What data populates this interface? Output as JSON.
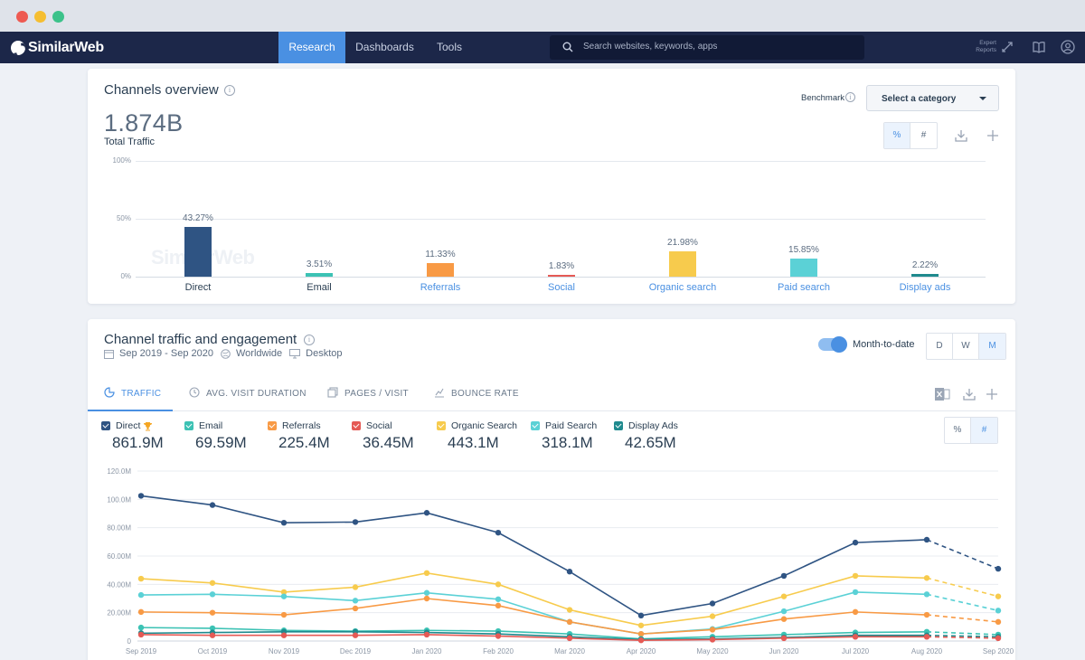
{
  "nav": {
    "brand": "SimilarWeb",
    "tabs": [
      "Research",
      "Dashboards",
      "Tools"
    ],
    "active_tab": "Research",
    "search_placeholder": "Search websites, keywords, apps",
    "expert_reports": "Expert Reports"
  },
  "channels_overview": {
    "title": "Channels overview",
    "total_value": "1.874B",
    "total_label": "Total Traffic",
    "benchmark_label": "Benchmark",
    "category_select": "Select a category",
    "toggle": [
      "%",
      "#"
    ],
    "active_toggle": "%",
    "watermark": "SimilarWeb"
  },
  "traffic_engagement": {
    "title": "Channel traffic and engagement",
    "date_range": "Sep 2019 - Sep 2020",
    "region": "Worldwide",
    "device": "Desktop",
    "month_to_date_label": "Month-to-date",
    "month_to_date_on": true,
    "granularity": [
      "D",
      "W",
      "M"
    ],
    "active_granularity": "M",
    "tabs": [
      "TRAFFIC",
      "AVG. VISIT DURATION",
      "PAGES / VISIT",
      "BOUNCE RATE"
    ],
    "active_tab": "TRAFFIC",
    "toggle": [
      "%",
      "#"
    ],
    "active_toggle": "#",
    "legend": [
      {
        "name": "Direct",
        "value": "861.9M",
        "color": "#2f5483",
        "trophy": true
      },
      {
        "name": "Email",
        "value": "69.59M",
        "color": "#3cc2b4"
      },
      {
        "name": "Referrals",
        "value": "225.4M",
        "color": "#f89a45"
      },
      {
        "name": "Social",
        "value": "36.45M",
        "color": "#e55a55"
      },
      {
        "name": "Organic Search",
        "value": "443.1M",
        "color": "#f7cb4d"
      },
      {
        "name": "Paid Search",
        "value": "318.1M",
        "color": "#5bd1d6"
      },
      {
        "name": "Display Ads",
        "value": "42.65M",
        "color": "#1f8a8e"
      }
    ]
  },
  "chart_data": [
    {
      "type": "bar",
      "title": "Channels overview",
      "categories": [
        "Direct",
        "Email",
        "Referrals",
        "Social",
        "Organic search",
        "Paid search",
        "Display ads"
      ],
      "values": [
        43.27,
        3.51,
        11.33,
        1.83,
        21.98,
        15.85,
        2.22
      ],
      "value_labels": [
        "43.27%",
        "3.51%",
        "11.33%",
        "1.83%",
        "21.98%",
        "15.85%",
        "2.22%"
      ],
      "colors": [
        "#2f5483",
        "#3cc2b4",
        "#f89a45",
        "#e55a55",
        "#f7cb4d",
        "#5bd1d6",
        "#1f8a8e"
      ],
      "category_link_color": "#4a90e2",
      "y_ticks": [
        "100%",
        "50%",
        "0%"
      ],
      "ylim": [
        0,
        100
      ],
      "grid": true
    },
    {
      "type": "line",
      "title": "Channel traffic and engagement",
      "x": [
        "Sep 2019",
        "Oct 2019",
        "Nov 2019",
        "Dec 2019",
        "Jan 2020",
        "Feb 2020",
        "Mar 2020",
        "Apr 2020",
        "May 2020",
        "Jun 2020",
        "Jul 2020",
        "Aug 2020",
        "Sep 2020"
      ],
      "y_ticks": [
        "120.0M",
        "100.0M",
        "80.00M",
        "60.00M",
        "40.00M",
        "20.00M",
        "0"
      ],
      "ylim": [
        0,
        120
      ],
      "y_unit": "M",
      "last_point_dashed": true,
      "grid": true,
      "series": [
        {
          "name": "Direct",
          "color": "#2f5483",
          "values": [
            102.5,
            96,
            83.5,
            84,
            90.5,
            76.5,
            49,
            18,
            26.5,
            46,
            69.5,
            71.5,
            51
          ]
        },
        {
          "name": "Organic Search",
          "color": "#f7cb4d",
          "values": [
            44,
            41,
            34.5,
            38,
            48,
            40,
            22,
            11,
            17.5,
            31.5,
            46,
            44.5,
            31.5
          ]
        },
        {
          "name": "Paid Search",
          "color": "#5bd1d6",
          "values": [
            32.5,
            33,
            31.5,
            28.5,
            34,
            29.5,
            13.5,
            5,
            8.5,
            21,
            34.5,
            33,
            21.5
          ]
        },
        {
          "name": "Referrals",
          "color": "#f89a45",
          "values": [
            20.5,
            20,
            18.5,
            23,
            30,
            25,
            13.5,
            5,
            8,
            15.5,
            20.5,
            18.5,
            13.5
          ]
        },
        {
          "name": "Email",
          "color": "#3cc2b4",
          "values": [
            9.5,
            9,
            7.5,
            7,
            7.5,
            7,
            5,
            1.5,
            3,
            4.5,
            6,
            6.5,
            4.5
          ]
        },
        {
          "name": "Display Ads",
          "color": "#1f8a8e",
          "values": [
            5.5,
            6,
            6.5,
            6.5,
            6,
            5,
            3,
            1,
            1.5,
            2.5,
            4,
            4,
            3
          ]
        },
        {
          "name": "Social",
          "color": "#e55a55",
          "values": [
            4.5,
            4,
            4,
            4,
            4.5,
            3.5,
            2,
            0.5,
            1,
            2,
            3,
            3,
            2
          ]
        }
      ]
    }
  ]
}
